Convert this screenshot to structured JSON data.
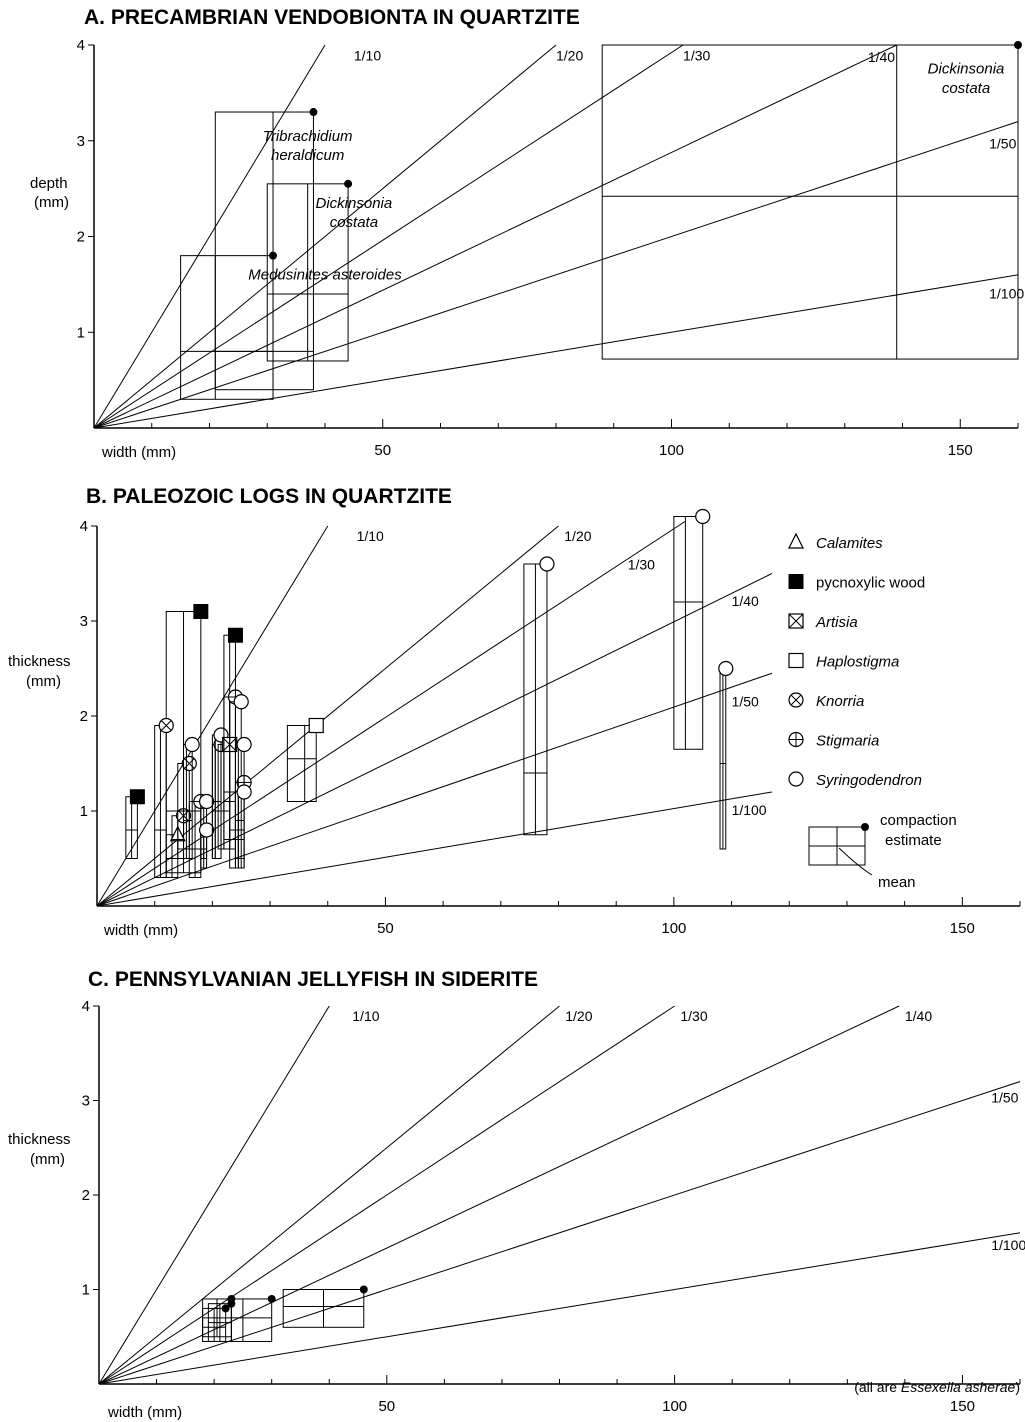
{
  "chart_data": [
    {
      "type": "scatter",
      "title": "A. PRECAMBRIAN VENDOBIONTA IN QUARTZITE",
      "xlabel": "width (mm)",
      "ylabel": "depth (mm)",
      "xlim": [
        0,
        160
      ],
      "ylim": [
        0,
        4
      ],
      "x_ticks": [
        "50",
        "100",
        "150"
      ],
      "y_ticks": [
        "1",
        "2",
        "3",
        "4"
      ],
      "ratio_lines": [
        "1/10",
        "1/20",
        "1/30",
        "1/40",
        "1/50",
        "1/100"
      ],
      "species_labels": [
        "Tribrachidium heraldicum",
        "Dickinsonia costata",
        "Medusinites asteroides",
        "Dickinsonia costata"
      ],
      "boxes": [
        {
          "species": "Tribrachidium heraldicum",
          "width": [
            21,
            38
          ],
          "thickness": [
            0.4,
            3.3
          ],
          "mean_width": 31,
          "mean_thickness": 0.8,
          "estimate": [
            38,
            3.3
          ]
        },
        {
          "species": "Dickinsonia costata",
          "width": [
            30,
            44
          ],
          "thickness": [
            0.7,
            2.55
          ],
          "mean_width": 37,
          "mean_thickness": 1.4,
          "estimate": [
            44,
            2.55
          ]
        },
        {
          "species": "Medusinites asteroides",
          "width": [
            15,
            31
          ],
          "thickness": [
            0.3,
            1.8
          ],
          "mean_width": 21,
          "mean_thickness": 0.8,
          "estimate": [
            31,
            1.8
          ]
        },
        {
          "species": "Dickinsonia costata",
          "width": [
            88,
            160
          ],
          "thickness": [
            0.72,
            4.0
          ],
          "mean_width": 139,
          "mean_thickness": 2.42,
          "estimate": [
            160,
            4.0
          ]
        }
      ]
    },
    {
      "type": "scatter",
      "title": "B. PALEOZOIC LOGS IN QUARTZITE",
      "xlabel": "width (mm)",
      "ylabel": "thickness (mm)",
      "xlim": [
        0,
        160
      ],
      "ylim": [
        0,
        4
      ],
      "x_ticks": [
        "50",
        "100",
        "150"
      ],
      "y_ticks": [
        "1",
        "2",
        "3",
        "4"
      ],
      "ratio_lines": [
        "1/10",
        "1/20",
        "1/30",
        "1/40",
        "1/50",
        "1/100"
      ],
      "legend": [
        {
          "marker": "triangle",
          "label": "Calamites",
          "italic": true
        },
        {
          "marker": "filled-square",
          "label": "pycnoxylic wood",
          "italic": false
        },
        {
          "marker": "crossed-square",
          "label": "Artisia",
          "italic": true
        },
        {
          "marker": "square",
          "label": "Haplostigma",
          "italic": true
        },
        {
          "marker": "x-circle",
          "label": "Knorria",
          "italic": true
        },
        {
          "marker": "plus-circle",
          "label": "Stigmaria",
          "italic": true
        },
        {
          "marker": "circle",
          "label": "Syringodendron",
          "italic": true
        }
      ],
      "legend_key": {
        "estimate_label": "compaction estimate",
        "mean_label": "mean"
      },
      "boxes": [
        {
          "marker": "filled-square",
          "width": [
            5,
            7
          ],
          "thickness": [
            0.5,
            1.15
          ],
          "mean_width": 6,
          "mean_thickness": 0.8,
          "estimate": [
            7,
            1.15
          ]
        },
        {
          "marker": "filled-square",
          "width": [
            12,
            18
          ],
          "thickness": [
            0.35,
            3.1
          ],
          "mean_width": 15,
          "mean_thickness": 1.0,
          "estimate": [
            18,
            3.1
          ]
        },
        {
          "marker": "filled-square",
          "width": [
            22,
            24
          ],
          "thickness": [
            0.6,
            2.85
          ],
          "mean_width": 23,
          "mean_thickness": 1.2,
          "estimate": [
            24,
            2.85
          ]
        },
        {
          "marker": "x-circle",
          "width": [
            10,
            12
          ],
          "thickness": [
            0.3,
            1.9
          ],
          "mean_width": 11,
          "mean_thickness": 0.8,
          "estimate": [
            12,
            1.9
          ]
        },
        {
          "marker": "triangle",
          "width": [
            12,
            14
          ],
          "thickness": [
            0.3,
            0.75
          ],
          "mean_width": 13,
          "mean_thickness": 0.5,
          "estimate": [
            14,
            0.75
          ]
        },
        {
          "marker": "x-circle",
          "width": [
            13,
            15
          ],
          "thickness": [
            0.5,
            0.95
          ],
          "mean_width": 14,
          "mean_thickness": 0.7,
          "estimate": [
            15,
            0.95
          ]
        },
        {
          "marker": "x-circle",
          "width": [
            14,
            16
          ],
          "thickness": [
            0.6,
            1.5
          ],
          "mean_width": 15,
          "mean_thickness": 1.0,
          "estimate": [
            16,
            1.5
          ]
        },
        {
          "marker": "circle",
          "width": [
            15,
            16.5
          ],
          "thickness": [
            0.5,
            1.7
          ],
          "mean_width": 15.5,
          "mean_thickness": 0.9,
          "estimate": [
            16.5,
            1.7
          ]
        },
        {
          "marker": "plus-circle",
          "width": [
            16,
            18
          ],
          "thickness": [
            0.3,
            1.1
          ],
          "mean_width": 17,
          "mean_thickness": 0.6,
          "estimate": [
            18,
            1.1
          ]
        },
        {
          "marker": "circle",
          "width": [
            18,
            19
          ],
          "thickness": [
            0.5,
            1.1
          ],
          "mean_width": 18.5,
          "mean_thickness": 0.8,
          "estimate": [
            19,
            1.1
          ]
        },
        {
          "marker": "circle",
          "width": [
            18,
            19
          ],
          "thickness": [
            0.4,
            0.8
          ],
          "mean_width": 18.5,
          "mean_thickness": 0.6,
          "estimate": [
            19,
            0.8
          ]
        },
        {
          "marker": "circle",
          "width": [
            20,
            21.5
          ],
          "thickness": [
            0.5,
            1.7
          ],
          "mean_width": 20.5,
          "mean_thickness": 1.0,
          "estimate": [
            21.5,
            1.7
          ]
        },
        {
          "marker": "circle",
          "width": [
            20,
            21.5
          ],
          "thickness": [
            0.5,
            1.8
          ],
          "mean_width": 20.5,
          "mean_thickness": 1.1,
          "estimate": [
            21.5,
            1.8
          ]
        },
        {
          "marker": "crossed-square",
          "width": [
            21,
            23
          ],
          "thickness": [
            0.6,
            1.7
          ],
          "mean_width": 22,
          "mean_thickness": 1.0,
          "estimate": [
            23,
            1.7
          ]
        },
        {
          "marker": "plus-circle",
          "width": [
            22,
            24
          ],
          "thickness": [
            0.7,
            2.2
          ],
          "mean_width": 23,
          "mean_thickness": 1.1,
          "estimate": [
            24,
            2.2
          ]
        },
        {
          "marker": "circle",
          "width": [
            23,
            25
          ],
          "thickness": [
            0.4,
            2.15
          ],
          "mean_width": 24,
          "mean_thickness": 0.8,
          "estimate": [
            25,
            2.15
          ]
        },
        {
          "marker": "plus-circle",
          "width": [
            24,
            25.5
          ],
          "thickness": [
            0.5,
            1.3
          ],
          "mean_width": 24.5,
          "mean_thickness": 0.8,
          "estimate": [
            25.5,
            1.3
          ]
        },
        {
          "marker": "circle",
          "width": [
            24,
            25.5
          ],
          "thickness": [
            0.4,
            1.7
          ],
          "mean_width": 24.5,
          "mean_thickness": 0.9,
          "estimate": [
            25.5,
            1.7
          ]
        },
        {
          "marker": "circle",
          "width": [
            24,
            25.5
          ],
          "thickness": [
            0.4,
            1.2
          ],
          "mean_width": 24.5,
          "mean_thickness": 0.7,
          "estimate": [
            25.5,
            1.2
          ]
        },
        {
          "marker": "square",
          "width": [
            33,
            38
          ],
          "thickness": [
            1.1,
            1.9
          ],
          "mean_width": 36,
          "mean_thickness": 1.55,
          "estimate": [
            38,
            1.9
          ]
        },
        {
          "marker": "circle",
          "width": [
            74,
            78
          ],
          "thickness": [
            0.75,
            3.6
          ],
          "mean_width": 76,
          "mean_thickness": 1.4,
          "estimate": [
            78,
            3.6
          ]
        },
        {
          "marker": "circle",
          "width": [
            100,
            105
          ],
          "thickness": [
            1.65,
            4.1
          ],
          "mean_width": 102,
          "mean_thickness": 3.2,
          "estimate": [
            105,
            4.1
          ]
        },
        {
          "marker": "circle",
          "width": [
            108,
            109
          ],
          "thickness": [
            0.6,
            2.5
          ],
          "mean_width": 108.5,
          "mean_thickness": 1.5,
          "estimate": [
            109,
            2.5
          ]
        }
      ]
    },
    {
      "type": "scatter",
      "title": "C. PENNSYLVANIAN JELLYFISH IN SIDERITE",
      "xlabel": "width (mm)",
      "ylabel": "thickness (mm)",
      "xlim": [
        0,
        160
      ],
      "ylim": [
        0,
        4
      ],
      "x_ticks": [
        "50",
        "100",
        "150"
      ],
      "y_ticks": [
        "1",
        "2",
        "3",
        "4"
      ],
      "ratio_lines": [
        "1/10",
        "1/20",
        "1/30",
        "1/40",
        "1/50",
        "1/100"
      ],
      "note_prefix": "(all are ",
      "note_species": "Essexella asherae",
      "note_suffix": ")",
      "boxes": [
        {
          "width": [
            18,
            22
          ],
          "thickness": [
            0.45,
            0.8
          ],
          "mean_width": 20,
          "mean_thickness": 0.6,
          "estimate": [
            22,
            0.8
          ]
        },
        {
          "width": [
            19,
            23
          ],
          "thickness": [
            0.45,
            0.85
          ],
          "mean_width": 21,
          "mean_thickness": 0.65,
          "estimate": [
            23,
            0.85
          ]
        },
        {
          "width": [
            18,
            23
          ],
          "thickness": [
            0.5,
            0.9
          ],
          "mean_width": 20.5,
          "mean_thickness": 0.7,
          "estimate": [
            23,
            0.9
          ]
        },
        {
          "width": [
            23,
            30
          ],
          "thickness": [
            0.45,
            0.9
          ],
          "mean_width": 25,
          "mean_thickness": 0.7,
          "estimate": [
            30,
            0.9
          ]
        },
        {
          "width": [
            32,
            46
          ],
          "thickness": [
            0.6,
            1.0
          ],
          "mean_width": 39,
          "mean_thickness": 0.82,
          "estimate": [
            46,
            1.0
          ]
        }
      ]
    }
  ]
}
